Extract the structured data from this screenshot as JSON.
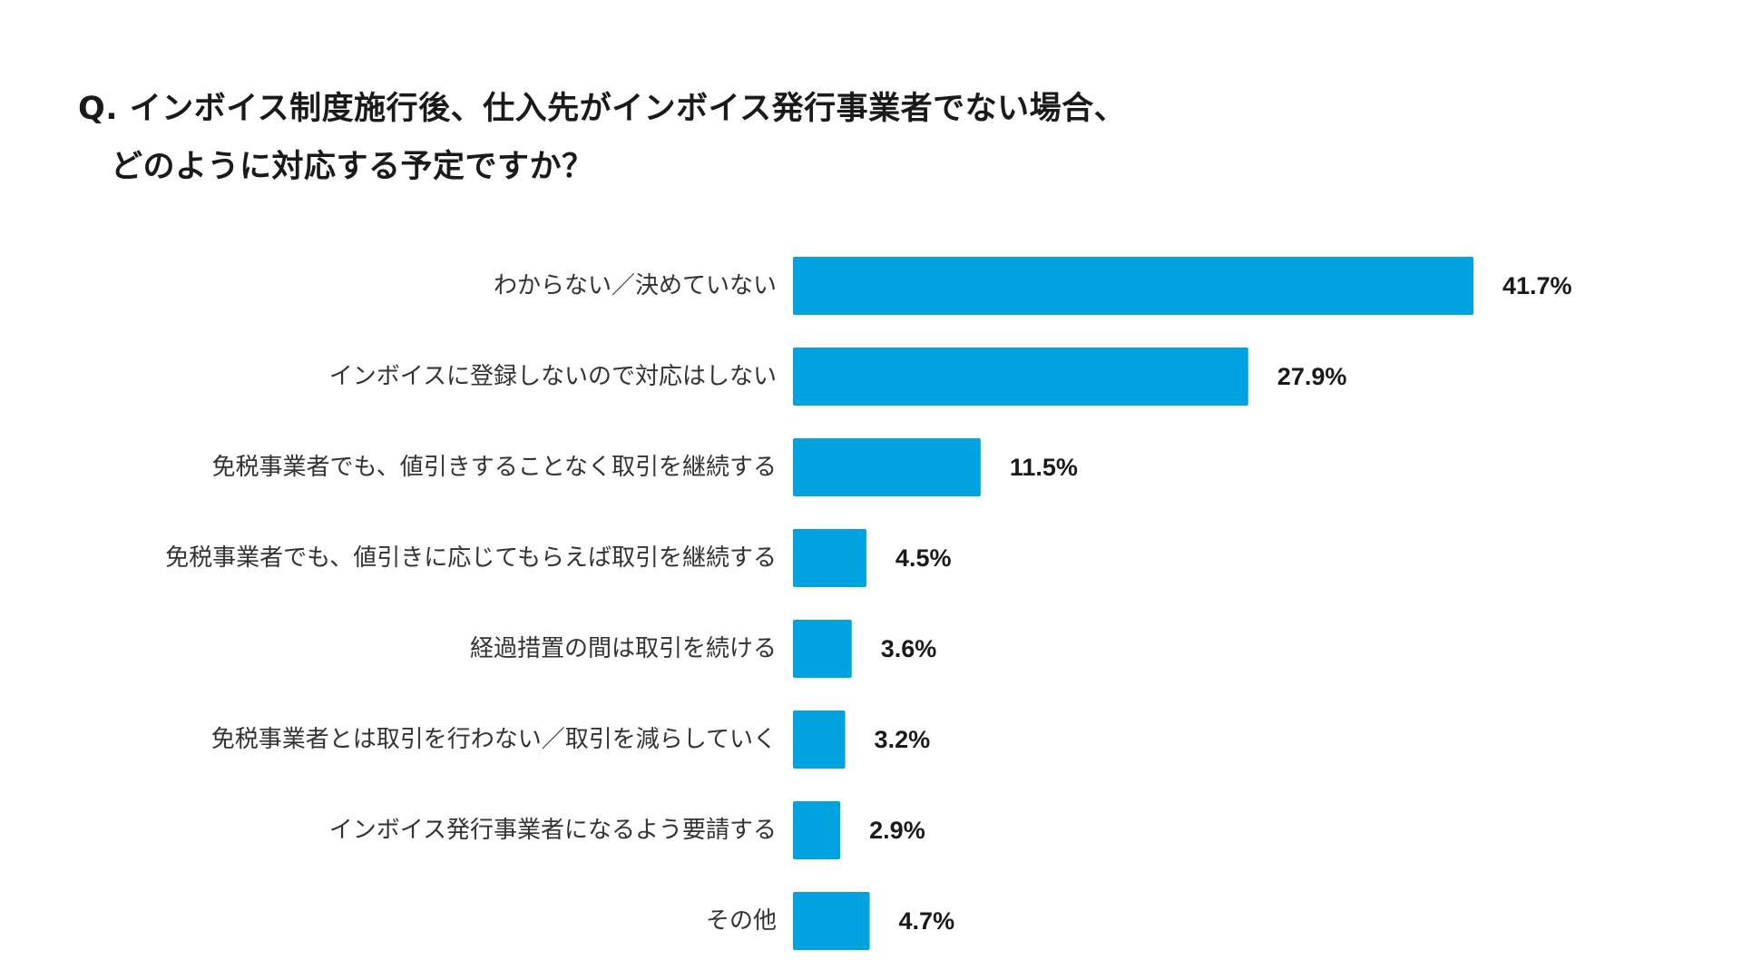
{
  "question": {
    "line1": "Q. インボイス制度施行後、仕入先がインボイス発行事業者でない場合、",
    "line2": "どのように対応する予定ですか？"
  },
  "chart_data": {
    "type": "bar",
    "orientation": "horizontal",
    "title": "Q. インボイス制度施行後、仕入先がインボイス発行事業者でない場合、どのように対応する予定ですか？",
    "unit": "%",
    "bar_color": "#00A3E0",
    "grid": false,
    "categories": [
      "わからない／決めていない",
      "インボイスに登録しないので対応はしない",
      "免税事業者でも、値引きすることなく取引を継続する",
      "免税事業者でも、値引きに応じてもらえば取引を継続する",
      "経過措置の間は取引を続ける",
      "免税事業者とは取引を行わない／取引を減らしていく",
      "インボイス発行事業者になるよう要請する",
      "その他"
    ],
    "values": [
      41.7,
      27.9,
      11.5,
      4.5,
      3.6,
      3.2,
      2.9,
      4.7
    ],
    "value_labels": [
      "41.7%",
      "27.9%",
      "11.5%",
      "4.5%",
      "3.6%",
      "3.2%",
      "2.9%",
      "4.7%"
    ]
  }
}
